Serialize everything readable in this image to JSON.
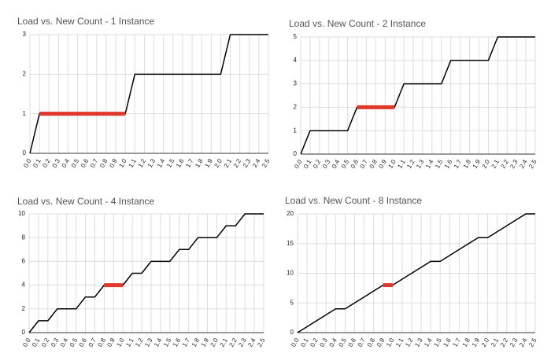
{
  "chart_data": [
    {
      "type": "line",
      "title": "Load vs. New Count - 1 Instance",
      "categories": [
        "0.0",
        "0.1",
        "0.2",
        "0.3",
        "0.4",
        "0.5",
        "0.6",
        "0.7",
        "0.8",
        "0.9",
        "1.0",
        "1.1",
        "1.2",
        "1.3",
        "1.4",
        "1.5",
        "1.6",
        "1.7",
        "1.8",
        "1.9",
        "2.0",
        "2.1",
        "2.2",
        "2.3",
        "2.4",
        "2.5"
      ],
      "series": [
        {
          "color": "#000000",
          "values": [
            0,
            1,
            1,
            1,
            1,
            1,
            1,
            1,
            1,
            1,
            1,
            2,
            2,
            2,
            2,
            2,
            2,
            2,
            2,
            2,
            2,
            3,
            3,
            3,
            3,
            3
          ]
        },
        {
          "color": "#e0392b",
          "values": [
            null,
            1,
            1,
            1,
            1,
            1,
            1,
            1,
            1,
            1,
            1,
            null,
            null,
            null,
            null,
            null,
            null,
            null,
            null,
            null,
            null,
            null,
            null,
            null,
            null,
            null
          ]
        }
      ],
      "ylim": [
        0,
        3
      ],
      "yticks": [
        0,
        1,
        2,
        3
      ],
      "grid": true
    },
    {
      "type": "line",
      "title": "Load vs. New Count - 2 Instance",
      "categories": [
        "0.0",
        "0.1",
        "0.2",
        "0.3",
        "0.4",
        "0.5",
        "0.6",
        "0.7",
        "0.8",
        "0.9",
        "1.0",
        "1.1",
        "1.2",
        "1.3",
        "1.4",
        "1.5",
        "1.6",
        "1.7",
        "1.8",
        "1.9",
        "2.0",
        "2.1",
        "2.2",
        "2.3",
        "2.4",
        "2.5"
      ],
      "series": [
        {
          "color": "#000000",
          "values": [
            0,
            1,
            1,
            1,
            1,
            1,
            2,
            2,
            2,
            2,
            2,
            3,
            3,
            3,
            3,
            3,
            4,
            4,
            4,
            4,
            4,
            5,
            5,
            5,
            5,
            5
          ]
        },
        {
          "color": "#e0392b",
          "values": [
            null,
            null,
            null,
            null,
            null,
            null,
            2,
            2,
            2,
            2,
            2,
            null,
            null,
            null,
            null,
            null,
            null,
            null,
            null,
            null,
            null,
            null,
            null,
            null,
            null,
            null
          ]
        }
      ],
      "ylim": [
        0,
        5
      ],
      "yticks": [
        0,
        1,
        2,
        3,
        4,
        5
      ],
      "grid": true
    },
    {
      "type": "line",
      "title": "Load vs. New Count - 4 Instance",
      "categories": [
        "0.0",
        "0.1",
        "0.2",
        "0.3",
        "0.4",
        "0.5",
        "0.6",
        "0.7",
        "0.8",
        "0.9",
        "1.0",
        "1.1",
        "1.2",
        "1.3",
        "1.4",
        "1.5",
        "1.6",
        "1.7",
        "1.8",
        "1.9",
        "2.0",
        "2.1",
        "2.2",
        "2.3",
        "2.4",
        "2.5"
      ],
      "series": [
        {
          "color": "#000000",
          "values": [
            0,
            1,
            1,
            2,
            2,
            2,
            3,
            3,
            4,
            4,
            4,
            5,
            5,
            6,
            6,
            6,
            7,
            7,
            8,
            8,
            8,
            9,
            9,
            10,
            10,
            10
          ]
        },
        {
          "color": "#e0392b",
          "values": [
            null,
            null,
            null,
            null,
            null,
            null,
            null,
            null,
            4,
            4,
            4,
            null,
            null,
            null,
            null,
            null,
            null,
            null,
            null,
            null,
            null,
            null,
            null,
            null,
            null,
            null
          ]
        }
      ],
      "ylim": [
        0,
        10
      ],
      "yticks": [
        0,
        2,
        4,
        6,
        8,
        10
      ],
      "grid": true
    },
    {
      "type": "line",
      "title": "Load vs. New Count - 8 Instance",
      "categories": [
        "0.0",
        "0.1",
        "0.2",
        "0.3",
        "0.4",
        "0.5",
        "0.6",
        "0.7",
        "0.8",
        "0.9",
        "1.0",
        "1.1",
        "1.2",
        "1.3",
        "1.4",
        "1.5",
        "1.6",
        "1.7",
        "1.8",
        "1.9",
        "2.0",
        "2.1",
        "2.2",
        "2.3",
        "2.4",
        "2.5"
      ],
      "series": [
        {
          "color": "#000000",
          "values": [
            0,
            1,
            2,
            3,
            4,
            4,
            5,
            6,
            7,
            8,
            8,
            9,
            10,
            11,
            12,
            12,
            13,
            14,
            15,
            16,
            16,
            17,
            18,
            19,
            20,
            20
          ]
        },
        {
          "color": "#e0392b",
          "values": [
            null,
            null,
            null,
            null,
            null,
            null,
            null,
            null,
            null,
            8,
            8,
            null,
            null,
            null,
            null,
            null,
            null,
            null,
            null,
            null,
            null,
            null,
            null,
            null,
            null,
            null
          ]
        }
      ],
      "ylim": [
        0,
        20
      ],
      "yticks": [
        0,
        5,
        10,
        15,
        20
      ],
      "grid": true
    }
  ]
}
